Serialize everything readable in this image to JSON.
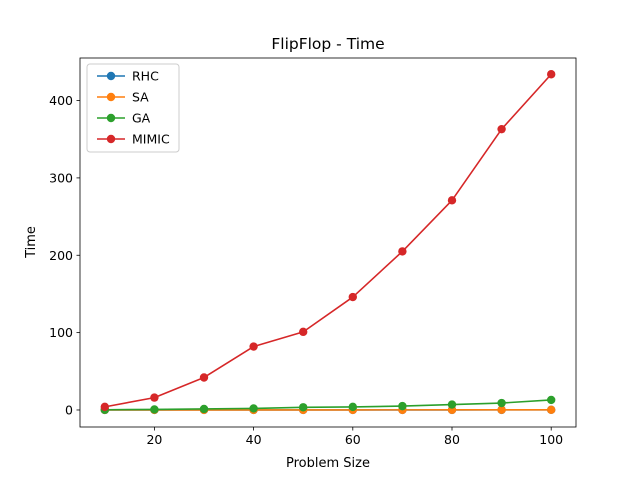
{
  "chart_data": {
    "type": "line",
    "title": "FlipFlop - Time",
    "xlabel": "Problem Size",
    "ylabel": "Time",
    "x": [
      10,
      20,
      30,
      40,
      50,
      60,
      70,
      80,
      90,
      100
    ],
    "xlim": [
      5,
      105
    ],
    "ylim": [
      -22,
      455
    ],
    "xticks": [
      20,
      40,
      60,
      80,
      100
    ],
    "yticks": [
      0,
      100,
      200,
      300,
      400
    ],
    "grid": false,
    "legend_position": "top-left",
    "series": [
      {
        "name": "RHC",
        "color": "#1f77b4",
        "values": [
          0.01,
          0.02,
          0.03,
          0.05,
          0.06,
          0.08,
          0.1,
          0.12,
          0.15,
          0.18
        ]
      },
      {
        "name": "SA",
        "color": "#ff7f0e",
        "values": [
          0.02,
          0.03,
          0.05,
          0.07,
          0.09,
          0.11,
          0.14,
          0.17,
          0.2,
          0.24
        ]
      },
      {
        "name": "GA",
        "color": "#2ca02c",
        "values": [
          0.3,
          0.7,
          1.3,
          2.0,
          3.5,
          4.0,
          5.0,
          7.0,
          9.0,
          13.0
        ]
      },
      {
        "name": "MIMIC",
        "color": "#d62728",
        "values": [
          4,
          16,
          42,
          82,
          101,
          146,
          205,
          271,
          363,
          434
        ]
      }
    ]
  }
}
